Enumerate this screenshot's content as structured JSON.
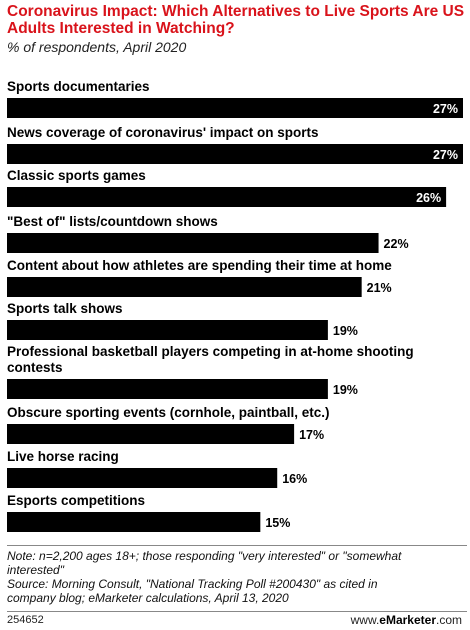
{
  "chart_data": {
    "type": "bar",
    "orientation": "horizontal",
    "title": "Coronavirus Impact: Which Alternatives to Live Sports Are US Adults Interested in Watching?",
    "subtitle": "% of respondents, April 2020",
    "categories": [
      [
        "Sports documentaries"
      ],
      [
        "News coverage of coronavirus' impact on sports"
      ],
      [
        "Classic sports games"
      ],
      [
        "\"Best of\" lists/countdown shows"
      ],
      [
        "Content about how athletes are spending their time at home"
      ],
      [
        "Sports talk shows"
      ],
      [
        "Professional basketball players competing in at-home shooting",
        "contests"
      ],
      [
        "Obscure sporting events (cornhole, paintball, etc.)"
      ],
      [
        "Live horse racing"
      ],
      [
        "Esports competitions"
      ]
    ],
    "values": [
      27,
      27,
      26,
      22,
      21,
      19,
      19,
      17,
      16,
      15
    ],
    "value_labels": [
      "27%",
      "27%",
      "26%",
      "22%",
      "21%",
      "19%",
      "19%",
      "17%",
      "16%",
      "15%"
    ],
    "bar_color": "#000000",
    "xlim": [
      0,
      27
    ]
  },
  "footer": {
    "note_lines": [
      "Note: n=2,200 ages 18+; those responding \"very interested\" or \"somewhat",
      "interested\"",
      "Source: Morning Consult, \"National Tracking Poll #200430\" as cited in",
      "company blog; eMarketer calculations, April 13, 2020"
    ],
    "chart_id": "254652",
    "brand_prefix": "www.",
    "brand_name": "eMarketer",
    "brand_suffix": ".com"
  },
  "colors": {
    "title": "#d9131b",
    "bar": "#000000",
    "background": "#ffffff"
  }
}
